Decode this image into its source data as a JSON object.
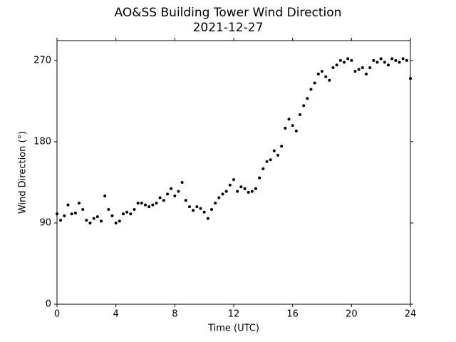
{
  "chart_data": {
    "type": "scatter",
    "title": "AO&SS Building Tower Wind Direction",
    "subtitle": "2021-12-27",
    "x_label": "Time (UTC)",
    "y_label": "Wind Direction (°)",
    "color": "#000000",
    "xlim": [
      0,
      24
    ],
    "xticks": [
      0,
      4,
      8,
      12,
      16,
      20,
      24
    ],
    "ylim": [
      0,
      292
    ],
    "yticks": [
      0,
      90,
      180,
      270
    ],
    "x": [
      0,
      0.25,
      0.5,
      0.75,
      1,
      1.25,
      1.5,
      1.75,
      2,
      2.25,
      2.5,
      2.75,
      3,
      3.25,
      3.5,
      3.75,
      4,
      4.25,
      4.5,
      4.75,
      5,
      5.25,
      5.5,
      5.75,
      6,
      6.25,
      6.5,
      6.75,
      7,
      7.25,
      7.5,
      7.75,
      8,
      8.25,
      8.5,
      8.75,
      9,
      9.25,
      9.5,
      9.75,
      10,
      10.25,
      10.5,
      10.75,
      11,
      11.25,
      11.5,
      11.75,
      12,
      12.25,
      12.5,
      12.75,
      13,
      13.25,
      13.5,
      13.75,
      14,
      14.25,
      14.5,
      14.75,
      15,
      15.25,
      15.5,
      15.75,
      16,
      16.25,
      16.5,
      16.75,
      17,
      17.25,
      17.5,
      17.75,
      18,
      18.25,
      18.5,
      18.75,
      19,
      19.25,
      19.5,
      19.75,
      20,
      20.25,
      20.5,
      20.75,
      21,
      21.25,
      21.5,
      21.75,
      22,
      22.25,
      22.5,
      22.75,
      23,
      23.25,
      23.5,
      23.75,
      24
    ],
    "values": [
      100,
      93,
      98,
      110,
      100,
      101,
      112,
      105,
      93,
      90,
      95,
      97,
      92,
      120,
      105,
      98,
      90,
      92,
      100,
      102,
      100,
      105,
      112,
      112,
      110,
      108,
      110,
      112,
      118,
      115,
      122,
      128,
      120,
      125,
      135,
      115,
      108,
      104,
      108,
      106,
      102,
      95,
      105,
      112,
      118,
      122,
      125,
      132,
      138,
      125,
      130,
      128,
      124,
      125,
      128,
      140,
      150,
      158,
      160,
      170,
      165,
      175,
      195,
      205,
      198,
      192,
      210,
      220,
      228,
      238,
      245,
      255,
      258,
      252,
      248,
      262,
      265,
      270,
      268,
      272,
      270,
      258,
      260,
      262,
      255,
      262,
      270,
      268,
      272,
      268,
      265,
      272,
      270,
      268,
      272,
      270,
      250
    ]
  }
}
